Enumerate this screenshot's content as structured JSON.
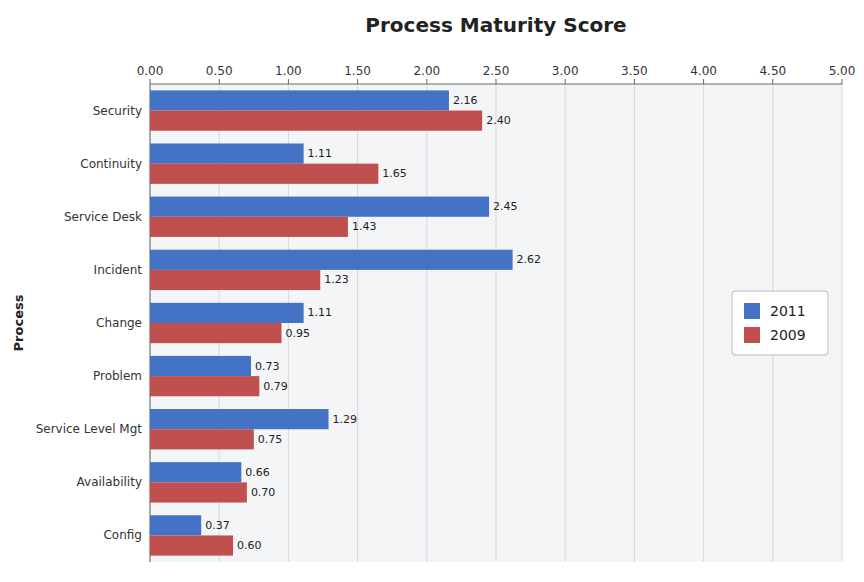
{
  "chart_data": {
    "type": "bar",
    "orientation": "horizontal",
    "title": "Process Maturity Score",
    "ylabel": "Process",
    "categories": [
      "Security",
      "Continuity",
      "Service Desk",
      "Incident",
      "Change",
      "Problem",
      "Service Level Mgt",
      "Availability",
      "Config"
    ],
    "series": [
      {
        "name": "2011",
        "color": "#4472C4",
        "values": [
          2.16,
          1.11,
          2.45,
          2.62,
          1.11,
          0.73,
          1.29,
          0.66,
          0.37
        ],
        "value_labels": [
          "2.16",
          "1.11",
          "2.45",
          "2.62",
          "1.11",
          "0.73",
          "1.29",
          "0.66",
          "0.37"
        ]
      },
      {
        "name": "2009",
        "color": "#C0504D",
        "values": [
          2.4,
          1.65,
          1.43,
          1.23,
          0.95,
          0.79,
          0.75,
          0.7,
          0.6
        ],
        "value_labels": [
          "2.40",
          "1.65",
          "1.43",
          "1.23",
          "0.95",
          "0.79",
          "0.75",
          "0.70",
          "0.60"
        ]
      }
    ],
    "xlim": [
      0,
      5.0
    ],
    "xticks": [
      {
        "value": 0,
        "label": "0.00"
      },
      {
        "value": 0.5,
        "label": "0.50"
      },
      {
        "value": 1,
        "label": "1.00"
      },
      {
        "value": 1.5,
        "label": "1.50"
      },
      {
        "value": 2,
        "label": "2.00"
      },
      {
        "value": 2.5,
        "label": "2.50"
      },
      {
        "value": 3,
        "label": "3.00"
      },
      {
        "value": 3.5,
        "label": "3.50"
      },
      {
        "value": 4,
        "label": "4.00"
      },
      {
        "value": 4.5,
        "label": "4.50"
      },
      {
        "value": 5,
        "label": "5.00"
      }
    ],
    "grid": true,
    "legend": "right",
    "data_labels": true
  }
}
